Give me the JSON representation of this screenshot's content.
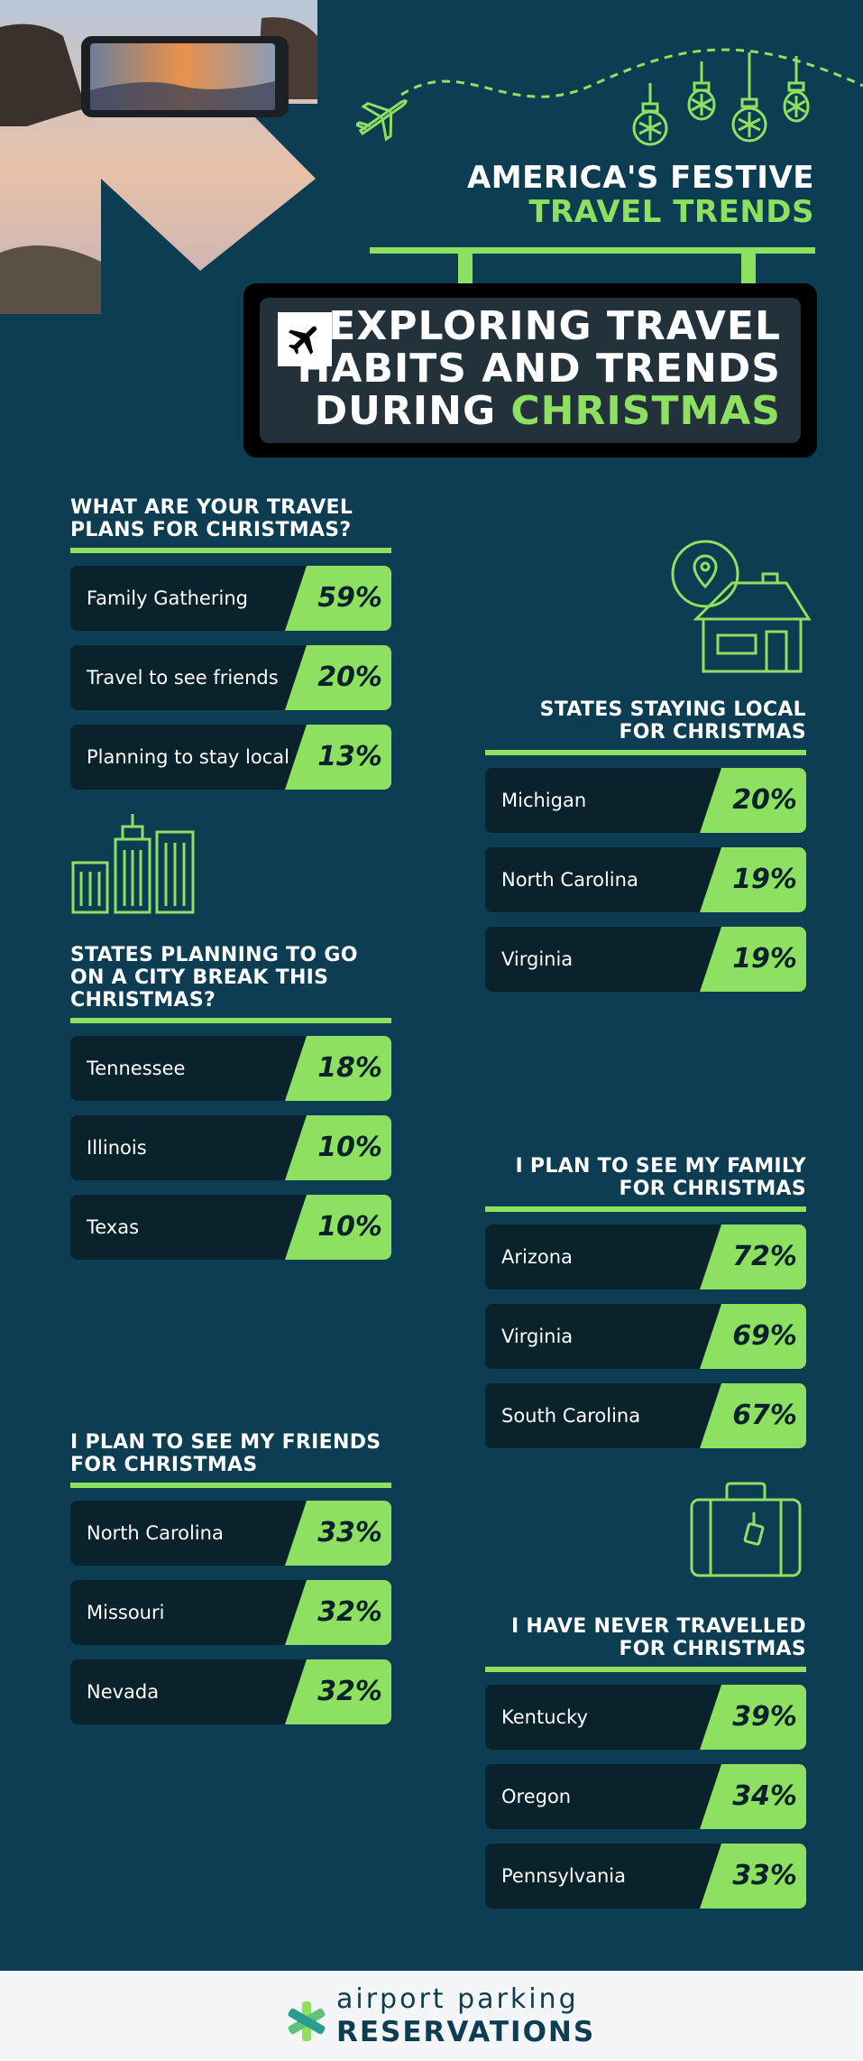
{
  "header": {
    "kicker_line1": "AMERICA'S FESTIVE",
    "kicker_line2": "TRAVEL TRENDS",
    "sign_line1": "EXPLORING TRAVEL",
    "sign_line2": "HABITS AND TRENDS",
    "sign_line3_prefix": "DURING ",
    "sign_line3_highlight": "CHRISTMAS"
  },
  "sections": {
    "travel_plans": {
      "title_line1": "WHAT ARE YOUR TRAVEL",
      "title_line2": "PLANS FOR CHRISTMAS?",
      "rows": [
        {
          "label": "Family Gathering",
          "value": "59%"
        },
        {
          "label": "Travel to see friends",
          "value": "20%"
        },
        {
          "label": "Planning to stay local",
          "value": "13%"
        }
      ]
    },
    "staying_local": {
      "title_line1": "STATES STAYING LOCAL",
      "title_line2": "FOR CHRISTMAS",
      "rows": [
        {
          "label": "Michigan",
          "value": "20%"
        },
        {
          "label": "North Carolina",
          "value": "19%"
        },
        {
          "label": "Virginia",
          "value": "19%"
        }
      ]
    },
    "city_break": {
      "title_line1": "STATES PLANNING TO GO",
      "title_line2": "ON A CITY BREAK THIS",
      "title_line3": "CHRISTMAS?",
      "rows": [
        {
          "label": "Tennessee",
          "value": "18%"
        },
        {
          "label": "Illinois",
          "value": "10%"
        },
        {
          "label": "Texas",
          "value": "10%"
        }
      ]
    },
    "see_family": {
      "title_line1": "I PLAN TO SEE MY FAMILY",
      "title_line2": "FOR CHRISTMAS",
      "rows": [
        {
          "label": "Arizona",
          "value": "72%"
        },
        {
          "label": "Virginia",
          "value": "69%"
        },
        {
          "label": "South Carolina",
          "value": "67%"
        }
      ]
    },
    "see_friends": {
      "title_line1": "I PLAN TO SEE MY FRIENDS",
      "title_line2": "FOR CHRISTMAS",
      "rows": [
        {
          "label": "North Carolina",
          "value": "33%"
        },
        {
          "label": "Missouri",
          "value": "32%"
        },
        {
          "label": "Nevada",
          "value": "32%"
        }
      ]
    },
    "never_travelled": {
      "title_line1": "I HAVE NEVER TRAVELLED",
      "title_line2": "FOR CHRISTMAS",
      "rows": [
        {
          "label": "Kentucky",
          "value": "39%"
        },
        {
          "label": "Oregon",
          "value": "34%"
        },
        {
          "label": "Pennsylvania",
          "value": "33%"
        }
      ]
    }
  },
  "footer": {
    "logo_line1": "airport parking",
    "logo_line2": "RESERVATIONS"
  },
  "colors": {
    "background": "#0d3d52",
    "accent": "#8ee060",
    "row_bg": "#0a222c",
    "footer_bg": "#f4f5f6"
  },
  "icons": [
    "airplane-icon",
    "ornament-icon",
    "location-pin-icon",
    "house-icon",
    "city-buildings-icon",
    "suitcase-icon",
    "logo-mark-icon"
  ]
}
